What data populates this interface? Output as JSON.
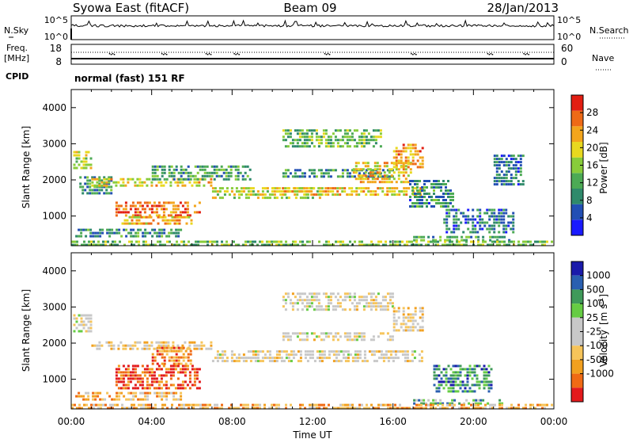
{
  "header": {
    "station": "Syowa East (fitACF)",
    "beam": "Beam 09",
    "date": "28/Jan/2013"
  },
  "noise_panel": {
    "left_label": "N.Sky",
    "right_label": "N.Search",
    "left_ticks": [
      "10^5",
      "10^0"
    ],
    "right_ticks": [
      "10^5",
      "10^0"
    ]
  },
  "freq_panel": {
    "left_label_line1": "Freq.",
    "left_label_line2": "[MHz]",
    "cpid_label": "CPID",
    "right_label": "Nave",
    "left_ticks": [
      "18",
      "8"
    ],
    "right_ticks": [
      "60",
      "0"
    ],
    "cpid_text": "normal (fast) 151 RF"
  },
  "colors": {
    "power": [
      "#1a1aff",
      "#224fb4",
      "#2f8a6b",
      "#4caa55",
      "#88cc3a",
      "#e8d81f",
      "#f3a51c",
      "#ee6a16",
      "#e21e12"
    ],
    "velocity": [
      "#e31a1c",
      "#f06a14",
      "#f2a01f",
      "#f6c45a",
      "#c8c8c8",
      "#c8c8c8",
      "#66cc44",
      "#3f9a5a",
      "#2a5fb0",
      "#1a1aaa"
    ]
  },
  "chart_data": [
    {
      "type": "heatmap",
      "name": "power",
      "xlabel": "Time UT",
      "ylabel": "Slant Range [km]",
      "x_range": [
        "00:00",
        "24:00"
      ],
      "y_range_km": [
        180,
        4500
      ],
      "x_ticks": [
        "00:00",
        "04:00",
        "08:00",
        "12:00",
        "16:00",
        "20:00",
        "00:00"
      ],
      "y_ticks": [
        1000,
        2000,
        3000,
        4000
      ],
      "colorbar": {
        "label": "Power [dB]",
        "range": [
          0,
          32
        ],
        "ticks": [
          4,
          8,
          12,
          16,
          20,
          24,
          28
        ]
      },
      "bands": [
        {
          "t0": 0.1,
          "t1": 1.0,
          "r0": 2300,
          "r1": 2800,
          "level": 0.55
        },
        {
          "t0": 0.4,
          "t1": 2.0,
          "r0": 1600,
          "r1": 2100,
          "level": 0.3
        },
        {
          "t0": 1.0,
          "t1": 7.0,
          "r0": 1750,
          "r1": 2050,
          "level": 0.62
        },
        {
          "t0": 2.2,
          "t1": 6.5,
          "r0": 1000,
          "r1": 1400,
          "level": 0.82
        },
        {
          "t0": 2.5,
          "t1": 6.0,
          "r0": 700,
          "r1": 1000,
          "level": 0.7
        },
        {
          "t0": 0.2,
          "t1": 5.5,
          "r0": 430,
          "r1": 650,
          "level": 0.3
        },
        {
          "t0": 4.0,
          "t1": 9.0,
          "r0": 2000,
          "r1": 2400,
          "level": 0.35
        },
        {
          "t0": 7.0,
          "t1": 12.5,
          "r0": 1450,
          "r1": 1800,
          "level": 0.58
        },
        {
          "t0": 10.0,
          "t1": 17.5,
          "r0": 1500,
          "r1": 1800,
          "level": 0.66
        },
        {
          "t0": 10.5,
          "t1": 16.0,
          "r0": 2000,
          "r1": 2300,
          "level": 0.3
        },
        {
          "t0": 10.5,
          "t1": 15.5,
          "r0": 2900,
          "r1": 3400,
          "level": 0.42
        },
        {
          "t0": 14.0,
          "t1": 17.0,
          "r0": 1900,
          "r1": 2500,
          "level": 0.65
        },
        {
          "t0": 16.0,
          "t1": 17.5,
          "r0": 2300,
          "r1": 3000,
          "level": 0.75
        },
        {
          "t0": 16.8,
          "t1": 19.0,
          "r0": 1200,
          "r1": 2000,
          "level": 0.28
        },
        {
          "t0": 17.0,
          "t1": 22.0,
          "r0": 250,
          "r1": 450,
          "level": 0.38
        },
        {
          "t0": 18.5,
          "t1": 22.0,
          "r0": 500,
          "r1": 1200,
          "level": 0.25
        },
        {
          "t0": 21.0,
          "t1": 22.5,
          "r0": 1800,
          "r1": 2700,
          "level": 0.25
        },
        {
          "t0": 0.0,
          "t1": 24.0,
          "r0": 180,
          "r1": 320,
          "level": 0.45
        }
      ]
    },
    {
      "type": "heatmap",
      "name": "velocity",
      "xlabel": "Time UT",
      "ylabel": "Slant Range [km]",
      "x_range": [
        "00:00",
        "24:00"
      ],
      "y_range_km": [
        180,
        4500
      ],
      "x_ticks": [
        "00:00",
        "04:00",
        "08:00",
        "12:00",
        "16:00",
        "20:00",
        "00:00"
      ],
      "y_ticks": [
        1000,
        2000,
        3000,
        4000
      ],
      "colorbar": {
        "label": "Velocity",
        "unit": "[m s",
        "unit_sup": "-1",
        "unit_end": "]",
        "ticks": [
          "1000",
          "500",
          "100",
          "25",
          "-25",
          "-100",
          "-500",
          "-1000"
        ]
      },
      "bands": [
        {
          "t0": 0.1,
          "t1": 1.0,
          "r0": 2300,
          "r1": 2800,
          "level": 0.45
        },
        {
          "t0": 1.0,
          "t1": 7.0,
          "r0": 1750,
          "r1": 2050,
          "level": 0.4
        },
        {
          "t0": 2.2,
          "t1": 6.5,
          "r0": 700,
          "r1": 1400,
          "level": 0.1
        },
        {
          "t0": 4.0,
          "t1": 6.0,
          "r0": 1400,
          "r1": 1900,
          "level": 0.2
        },
        {
          "t0": 0.2,
          "t1": 5.5,
          "r0": 430,
          "r1": 650,
          "level": 0.3
        },
        {
          "t0": 7.0,
          "t1": 17.5,
          "r0": 1450,
          "r1": 1800,
          "level": 0.45
        },
        {
          "t0": 10.5,
          "t1": 16.0,
          "r0": 2000,
          "r1": 2300,
          "level": 0.47
        },
        {
          "t0": 10.5,
          "t1": 16.0,
          "r0": 2900,
          "r1": 3400,
          "level": 0.46
        },
        {
          "t0": 16.0,
          "t1": 17.5,
          "r0": 2300,
          "r1": 3000,
          "level": 0.42
        },
        {
          "t0": 17.0,
          "t1": 21.5,
          "r0": 250,
          "r1": 450,
          "level": 0.68
        },
        {
          "t0": 18.0,
          "t1": 21.0,
          "r0": 600,
          "r1": 1400,
          "level": 0.78
        },
        {
          "t0": 0.0,
          "t1": 24.0,
          "r0": 180,
          "r1": 320,
          "level": 0.3
        }
      ]
    }
  ]
}
